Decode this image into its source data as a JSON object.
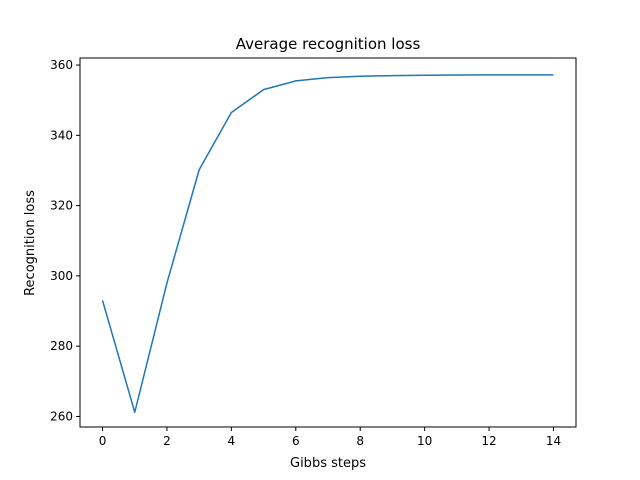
{
  "chart_data": {
    "type": "line",
    "title": "Average recognition loss",
    "xlabel": "Gibbs steps",
    "ylabel": "Recognition loss",
    "x": [
      0,
      1,
      2,
      3,
      4,
      5,
      6,
      7,
      8,
      9,
      10,
      11,
      12,
      13,
      14
    ],
    "series": [
      {
        "values": [
          293,
          261.2,
          298,
          330.2,
          346.5,
          353,
          355.5,
          356.4,
          356.8,
          357,
          357.1,
          357.15,
          357.2,
          357.2,
          357.2
        ]
      }
    ],
    "xlim": [
      -0.7,
      14.7
    ],
    "ylim": [
      257,
      362
    ],
    "xticks": [
      0,
      2,
      4,
      6,
      8,
      10,
      12,
      14
    ],
    "xtick_labels": [
      "0",
      "2",
      "4",
      "6",
      "8",
      "10",
      "12",
      "14"
    ],
    "yticks": [
      260,
      280,
      300,
      320,
      340,
      360
    ],
    "ytick_labels": [
      "260",
      "280",
      "300",
      "320",
      "340",
      "360"
    ],
    "grid": false,
    "line_color": "#1f77b4"
  }
}
